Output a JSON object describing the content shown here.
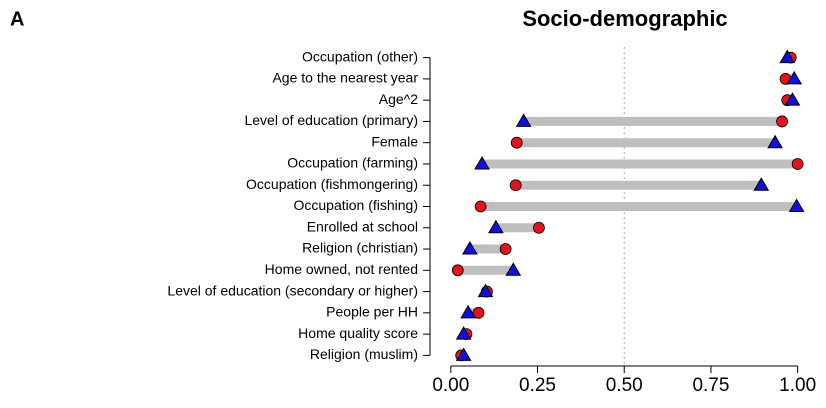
{
  "chart_data": {
    "type": "dumbbell",
    "panel_label": "A",
    "title": "Socio-demographic",
    "categories": [
      "Occupation (other)",
      "Age to the nearest year",
      "Age^2",
      "Level of education (primary)",
      "Female",
      "Occupation (farming)",
      "Occupation (fishmongering)",
      "Occupation (fishing)",
      "Enrolled at school",
      "Religion (christian)",
      "Home owned, not rented",
      "Level of education (secondary or higher)",
      "People per HH",
      "Home quality score",
      "Religion (muslim)"
    ],
    "series": [
      {
        "color": "#e8101a",
        "marker": "circle",
        "values": [
          0.98,
          0.965,
          0.97,
          0.955,
          0.19,
          1.0,
          0.187,
          0.086,
          0.254,
          0.158,
          0.02,
          0.104,
          0.08,
          0.045,
          0.03
        ]
      },
      {
        "color": "#1010e0",
        "marker": "triangle",
        "values": [
          0.97,
          0.99,
          0.985,
          0.21,
          0.935,
          0.09,
          0.895,
          0.997,
          0.13,
          0.055,
          0.18,
          0.1,
          0.05,
          0.037,
          0.037
        ]
      }
    ],
    "connector_color": "#bebebe",
    "reference_line": 0.5,
    "xlim": [
      -0.06,
      1.05
    ],
    "xticks": [
      {
        "value": 0,
        "label": "0.00"
      },
      {
        "value": 0.25,
        "label": "0.25"
      },
      {
        "value": 0.5,
        "label": "0.50"
      },
      {
        "value": 0.75,
        "label": "0.75"
      },
      {
        "value": 1,
        "label": "1.00"
      }
    ]
  }
}
